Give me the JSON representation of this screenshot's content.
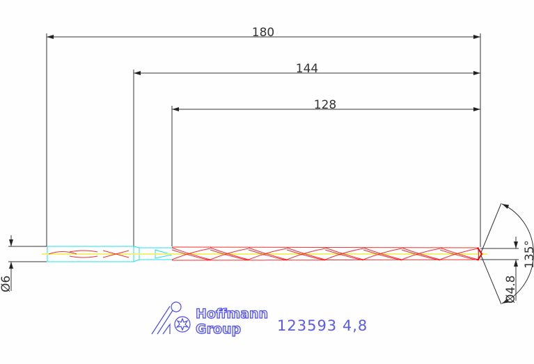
{
  "dimensions": {
    "overall_length": "180",
    "flute_plus_neck": "144",
    "flute_length": "128",
    "shank_diameter": "Ø6",
    "drill_diameter": "Ø4.8",
    "tip_angle": "135°"
  },
  "logo": {
    "line1": "Hoffmann",
    "line2": "Group"
  },
  "article": {
    "code": "123593  4,8"
  },
  "colors": {
    "dimension": "#333333",
    "shank": "#22e0ee",
    "flutes": "#f03030",
    "centerline": "#f4f070",
    "logo": "#4a4af0"
  }
}
